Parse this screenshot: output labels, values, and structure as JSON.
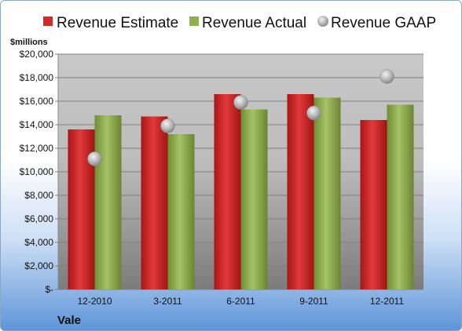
{
  "chart_data": {
    "type": "bar",
    "unit_label": "$millions",
    "company": "Vale",
    "categories": [
      "12-2010",
      "3-2011",
      "6-2011",
      "9-2011",
      "12-2011"
    ],
    "series": [
      {
        "name": "Revenue Estimate",
        "kind": "bar",
        "color": "#d42a2a",
        "values": [
          13600,
          14700,
          16600,
          16600,
          14400
        ]
      },
      {
        "name": "Revenue Actual",
        "kind": "bar",
        "color": "#90b050",
        "values": [
          14800,
          13200,
          15300,
          16300,
          15700
        ]
      },
      {
        "name": "Revenue GAAP",
        "kind": "marker",
        "color": "#a8a8a8",
        "values": [
          11100,
          13900,
          15900,
          15000,
          18100
        ]
      }
    ],
    "ylim": [
      0,
      20000
    ],
    "yticks": [
      {
        "value": 0,
        "label": "$-"
      },
      {
        "value": 2000,
        "label": "$2,000"
      },
      {
        "value": 4000,
        "label": "$4,000"
      },
      {
        "value": 6000,
        "label": "$6,000"
      },
      {
        "value": 8000,
        "label": "$8,000"
      },
      {
        "value": 10000,
        "label": "$10,000"
      },
      {
        "value": 12000,
        "label": "$12,000"
      },
      {
        "value": 14000,
        "label": "$14,000"
      },
      {
        "value": 16000,
        "label": "$16,000"
      },
      {
        "value": 18000,
        "label": "$18,000"
      },
      {
        "value": 20000,
        "label": "$20,000"
      }
    ],
    "grid": true,
    "legend_position": "top"
  }
}
